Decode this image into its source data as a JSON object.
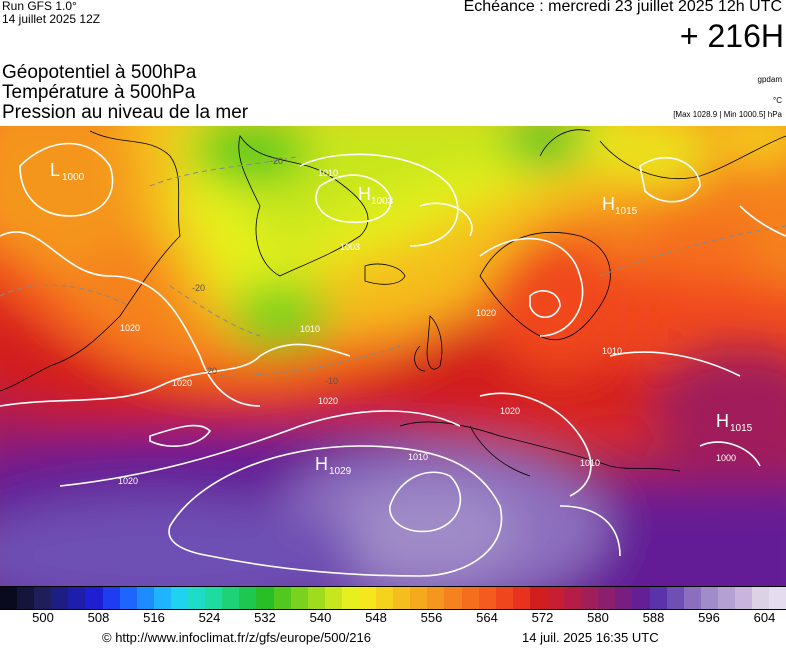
{
  "header": {
    "run": "Run GFS 1.0°",
    "run_date": "14 juillet 2025 12Z",
    "echeance": "Echéance : mercredi 23 juillet 2025 12h UTC",
    "hour": "+ 216H"
  },
  "parameters": [
    "Géopotentiel à 500hPa",
    "Température à 500hPa",
    "Pression au niveau de la mer"
  ],
  "units": {
    "geopotential": "gpdam",
    "temperature": "°C",
    "pressure_range": "[Max 1028.9 | Min 1000.5] hPa"
  },
  "map_labels": {
    "systems": [
      {
        "type": "L",
        "value": "1000"
      },
      {
        "type": "H",
        "value": "1003"
      },
      {
        "type": "H",
        "value": "1015"
      },
      {
        "type": "H",
        "value": "1029"
      },
      {
        "type": "H",
        "value": "1015"
      }
    ],
    "isobars": [
      "1010",
      "1003",
      "1010",
      "1020",
      "1020",
      "1020",
      "1010",
      "1010",
      "1020",
      "1010",
      "1000",
      "1020",
      "1020"
    ],
    "isotherms": [
      "-20",
      "-20",
      "-20",
      "-10"
    ]
  },
  "colorbar": {
    "colors": [
      "#0a0a1e",
      "#14143c",
      "#1e1e5a",
      "#1e1e82",
      "#1e1eaa",
      "#1e1ed2",
      "#1e3cf0",
      "#1e64ff",
      "#1e8cff",
      "#1eb4ff",
      "#1ed2f0",
      "#1edcc8",
      "#1edca0",
      "#1ed278",
      "#1ec850",
      "#28be28",
      "#50c81e",
      "#78d21e",
      "#a0dc1e",
      "#c8e61e",
      "#e6f01e",
      "#f5e61e",
      "#f5d21e",
      "#f5be1e",
      "#f5aa1e",
      "#f5961e",
      "#f5821e",
      "#f56e1e",
      "#f55a1e",
      "#f0461e",
      "#e6321e",
      "#d21e1e",
      "#c81e32",
      "#b41e46",
      "#a01e5a",
      "#8c1e6e",
      "#781e82",
      "#641e96",
      "#5a32aa",
      "#6e50b4",
      "#8c6ebe",
      "#a08cc8",
      "#b4a0d2",
      "#c8b4dc",
      "#dcd2e6",
      "#e6dcf0"
    ],
    "ticks": [
      "500",
      "508",
      "516",
      "524",
      "532",
      "540",
      "548",
      "556",
      "564",
      "572",
      "580",
      "588",
      "596",
      "604"
    ]
  },
  "footer": {
    "url": "© http://www.infoclimat.fr/z/gfs/europe/500/216",
    "date": "14 juil. 2025 16:35 UTC"
  }
}
